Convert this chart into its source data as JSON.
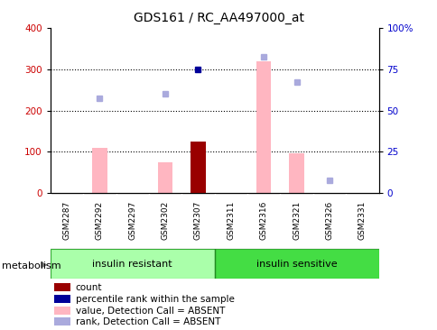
{
  "title": "GDS161 / RC_AA497000_at",
  "samples": [
    "GSM2287",
    "GSM2292",
    "GSM2297",
    "GSM2302",
    "GSM2307",
    "GSM2311",
    "GSM2316",
    "GSM2321",
    "GSM2326",
    "GSM2331"
  ],
  "group1_label": "insulin resistant",
  "group2_label": "insulin sensitive",
  "group1_count": 5,
  "group2_count": 5,
  "ylim_left": [
    0,
    400
  ],
  "ylim_right": [
    0,
    100
  ],
  "yticks_left": [
    0,
    100,
    200,
    300,
    400
  ],
  "yticks_right": [
    0,
    25,
    50,
    75,
    100
  ],
  "yticklabels_right": [
    "0",
    "25",
    "50",
    "75",
    "100%"
  ],
  "pink_bars": [
    null,
    110,
    null,
    75,
    null,
    null,
    320,
    97,
    null,
    null
  ],
  "dark_red_bars": [
    null,
    null,
    null,
    null,
    125,
    null,
    null,
    null,
    null,
    null
  ],
  "blue_dots_right": [
    null,
    null,
    null,
    null,
    75,
    null,
    null,
    null,
    null,
    null
  ],
  "lavender_dots_right": [
    null,
    57.5,
    null,
    60,
    null,
    null,
    82.5,
    67.5,
    7.5,
    null
  ],
  "bg_color": "#FFFFFF",
  "plot_bg": "#FFFFFF",
  "tick_label_color_left": "#CC0000",
  "tick_label_color_right": "#0000CC",
  "group1_bg": "#AAFFAA",
  "group2_bg": "#44DD44",
  "sample_bg": "#CCCCCC",
  "pink_bar_color": "#FFB6C1",
  "dark_red_color": "#990000",
  "blue_dot_color": "#000099",
  "lavender_dot_color": "#AAAADD",
  "legend_labels": [
    "count",
    "percentile rank within the sample",
    "value, Detection Call = ABSENT",
    "rank, Detection Call = ABSENT"
  ],
  "legend_colors": [
    "#990000",
    "#000099",
    "#FFB6C1",
    "#AAAADD"
  ]
}
